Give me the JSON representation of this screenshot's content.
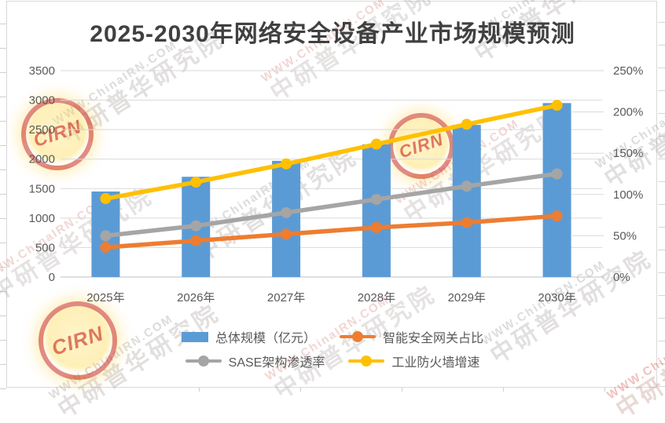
{
  "title": "2025-2030年网络安全设备产业市场规模预测",
  "watermark": {
    "url_text": "WWW.ChinaIRN.COM",
    "brand_text": "中研普华研究院",
    "stamp_text": "CIRN"
  },
  "chart_data": {
    "type": "combo-bar-line",
    "title": "2025-2030年网络安全设备产业市场规模预测",
    "categories": [
      "2025年",
      "2026年",
      "2027年",
      "2028年",
      "2029年",
      "2030年"
    ],
    "series": [
      {
        "name": "总体规模（亿元）",
        "type": "bar",
        "axis": "left",
        "color": "#5B9BD5",
        "values": [
          1450,
          1700,
          1970,
          2250,
          2580,
          2950
        ]
      },
      {
        "name": "智能安全网关占比",
        "type": "line",
        "axis": "right",
        "color": "#ED7D31",
        "unit": "%",
        "values": [
          36,
          44,
          52,
          60,
          66,
          74
        ]
      },
      {
        "name": "SASE架构渗透率",
        "type": "line",
        "axis": "right",
        "color": "#A5A5A5",
        "unit": "%",
        "values": [
          50,
          62,
          78,
          94,
          110,
          125
        ]
      },
      {
        "name": "工业防火墙增速",
        "type": "line",
        "axis": "right",
        "color": "#FFC000",
        "unit": "%",
        "values": [
          95,
          115,
          137,
          161,
          185,
          208
        ]
      }
    ],
    "left_axis": {
      "min": 0,
      "max": 3500,
      "step": 500,
      "tick_labels": [
        "0",
        "500",
        "1000",
        "1500",
        "2000",
        "2500",
        "3000",
        "3500"
      ]
    },
    "right_axis": {
      "min": 0,
      "max": 250,
      "step": 50,
      "suffix": "%",
      "tick_labels": [
        "0%",
        "50%",
        "100%",
        "150%",
        "200%",
        "250%"
      ]
    },
    "grid": true,
    "legend_position": "bottom",
    "colors": {
      "grid": "#d9d9d9",
      "axis_line": "#bfbfbf",
      "tick_text": "#595959",
      "title_text": "#404040"
    }
  }
}
